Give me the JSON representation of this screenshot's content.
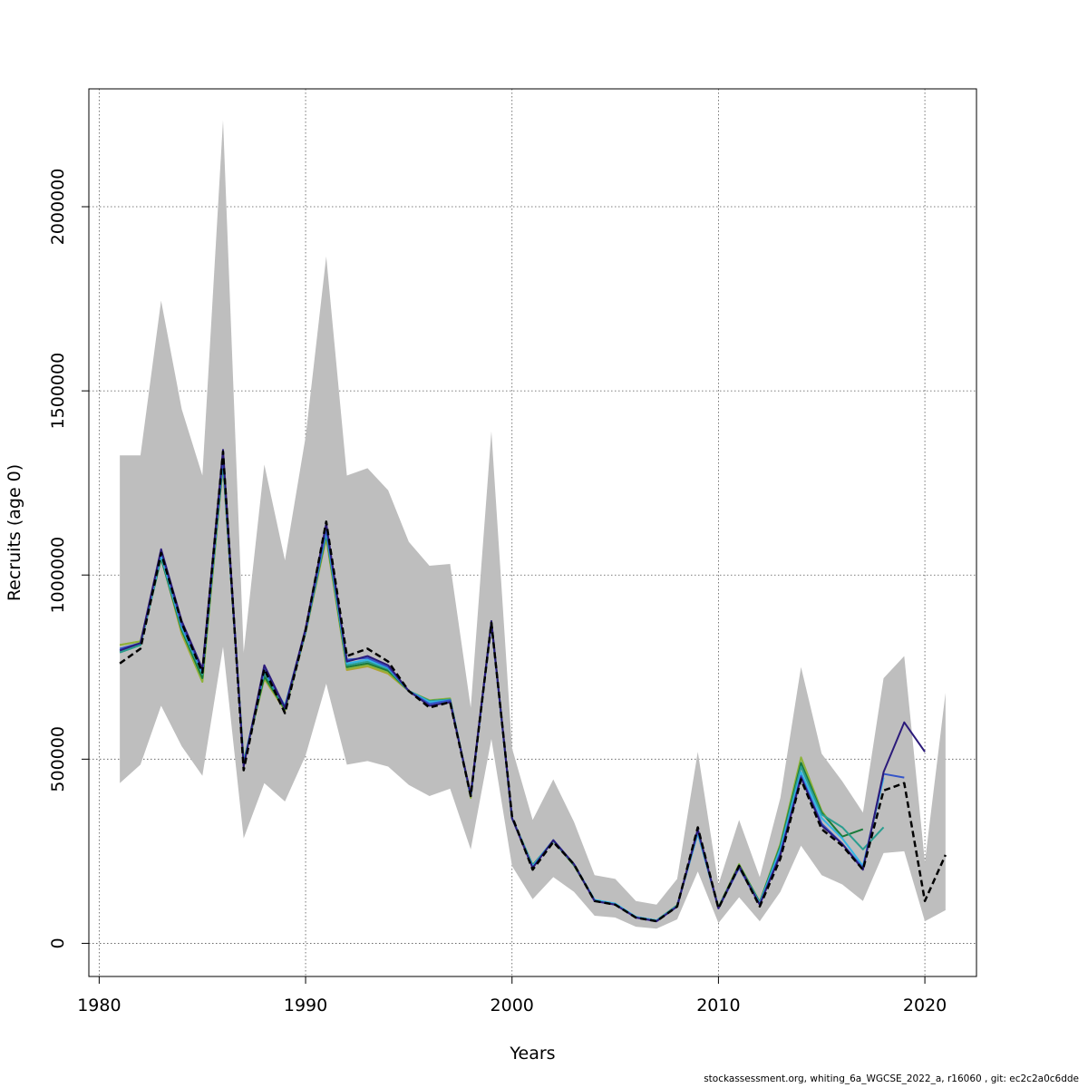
{
  "chart_data": {
    "type": "line",
    "title": "",
    "xlabel": "Years",
    "ylabel": "Recruits (age 0)",
    "xlim": [
      1979.5,
      2022.5
    ],
    "ylim": [
      -90000,
      2320000
    ],
    "xticks": [
      1980,
      1990,
      2000,
      2010,
      2020
    ],
    "yticks": [
      0,
      500000,
      1000000,
      1500000,
      2000000
    ],
    "grid": true,
    "band_color": "#bebebe",
    "band": {
      "x": [
        1981,
        1982,
        1983,
        1984,
        1985,
        1986,
        1987,
        1988,
        1989,
        1990,
        1991,
        1992,
        1993,
        1994,
        1995,
        1996,
        1997,
        1998,
        1999,
        2000,
        2001,
        2002,
        2003,
        2004,
        2005,
        2006,
        2007,
        2008,
        2009,
        2010,
        2011,
        2012,
        2013,
        2014,
        2015,
        2016,
        2017,
        2018,
        2019,
        2020,
        2021
      ],
      "upper": [
        1325000,
        1325000,
        1745000,
        1450000,
        1270000,
        2235000,
        790000,
        1300000,
        1040000,
        1375000,
        1865000,
        1270000,
        1290000,
        1230000,
        1090000,
        1025000,
        1030000,
        640000,
        1390000,
        530000,
        335000,
        445000,
        330000,
        185000,
        175000,
        115000,
        105000,
        175000,
        520000,
        160000,
        335000,
        180000,
        395000,
        750000,
        515000,
        440000,
        355000,
        720000,
        780000,
        220000,
        680000
      ],
      "lower": [
        435000,
        485000,
        645000,
        535000,
        455000,
        805000,
        285000,
        435000,
        385000,
        510000,
        705000,
        485000,
        495000,
        480000,
        430000,
        400000,
        420000,
        255000,
        555000,
        210000,
        120000,
        180000,
        140000,
        75000,
        70000,
        45000,
        40000,
        65000,
        195000,
        55000,
        125000,
        60000,
        140000,
        265000,
        185000,
        160000,
        115000,
        245000,
        250000,
        60000,
        90000
      ]
    },
    "series": [
      {
        "color": "#000000",
        "dash": true,
        "width": 2.5,
        "x": [
          1981,
          1982,
          1983,
          1984,
          1985,
          1986,
          1987,
          1988,
          1989,
          1990,
          1991,
          1992,
          1993,
          1994,
          1995,
          1996,
          1997,
          1998,
          1999,
          2000,
          2001,
          2002,
          2003,
          2004,
          2005,
          2006,
          2007,
          2008,
          2009,
          2010,
          2011,
          2012,
          2013,
          2014,
          2015,
          2016,
          2017,
          2018,
          2019,
          2020,
          2021
        ],
        "y": [
          760000,
          800000,
          1060000,
          870000,
          735000,
          1335000,
          470000,
          745000,
          625000,
          850000,
          1145000,
          780000,
          800000,
          765000,
          685000,
          640000,
          655000,
          400000,
          870000,
          345000,
          200000,
          275000,
          215000,
          115000,
          105000,
          70000,
          60000,
          100000,
          315000,
          95000,
          210000,
          100000,
          230000,
          445000,
          310000,
          265000,
          200000,
          415000,
          435000,
          115000,
          240000
        ]
      },
      {
        "color": "#2b1a7a",
        "dash": false,
        "width": 2,
        "x": [
          1981,
          1982,
          1983,
          1984,
          1985,
          1986,
          1987,
          1988,
          1989,
          1990,
          1991,
          1992,
          1993,
          1994,
          1995,
          1996,
          1997,
          1998,
          1999,
          2000,
          2001,
          2002,
          2003,
          2004,
          2005,
          2006,
          2007,
          2008,
          2009,
          2010,
          2011,
          2012,
          2013,
          2014,
          2015,
          2016,
          2017,
          2018,
          2019,
          2020
        ],
        "y": [
          795000,
          815000,
          1070000,
          875000,
          745000,
          1340000,
          480000,
          755000,
          640000,
          855000,
          1140000,
          765000,
          780000,
          755000,
          685000,
          645000,
          655000,
          405000,
          875000,
          340000,
          205000,
          280000,
          215000,
          115000,
          105000,
          70000,
          60000,
          100000,
          310000,
          95000,
          210000,
          105000,
          240000,
          450000,
          320000,
          270000,
          200000,
          465000,
          600000,
          520000
        ]
      },
      {
        "color": "#3455c9",
        "dash": false,
        "width": 2,
        "x": [
          1981,
          1982,
          1983,
          1984,
          1985,
          1986,
          1987,
          1988,
          1989,
          1990,
          1991,
          1992,
          1993,
          1994,
          1995,
          1996,
          1997,
          1998,
          1999,
          2000,
          2001,
          2002,
          2003,
          2004,
          2005,
          2006,
          2007,
          2008,
          2009,
          2010,
          2011,
          2012,
          2013,
          2014,
          2015,
          2016,
          2017,
          2018,
          2019
        ],
        "y": [
          800000,
          815000,
          1065000,
          865000,
          740000,
          1320000,
          485000,
          745000,
          640000,
          850000,
          1125000,
          770000,
          775000,
          750000,
          685000,
          650000,
          660000,
          400000,
          870000,
          340000,
          205000,
          280000,
          215000,
          115000,
          105000,
          70000,
          60000,
          100000,
          305000,
          95000,
          205000,
          105000,
          245000,
          455000,
          325000,
          270000,
          205000,
          460000,
          450000
        ]
      },
      {
        "color": "#33b5e5",
        "dash": false,
        "width": 2,
        "x": [
          1981,
          1982,
          1983,
          1984,
          1985,
          1986,
          1987,
          1988,
          1989,
          1990,
          1991,
          1992,
          1993,
          1994,
          1995,
          1996,
          1997,
          1998,
          1999,
          2000,
          2001,
          2002,
          2003,
          2004,
          2005,
          2006,
          2007,
          2008,
          2009,
          2010,
          2011,
          2012,
          2013,
          2014,
          2015,
          2016,
          2017,
          2018
        ],
        "y": [
          795000,
          815000,
          1055000,
          860000,
          735000,
          1315000,
          490000,
          740000,
          645000,
          850000,
          1120000,
          760000,
          770000,
          748000,
          685000,
          655000,
          660000,
          400000,
          870000,
          340000,
          210000,
          280000,
          215000,
          118000,
          108000,
          72000,
          62000,
          102000,
          300000,
          97000,
          208000,
          108000,
          255000,
          465000,
          340000,
          285000,
          210000,
          450000
        ]
      },
      {
        "color": "#2a9d8f",
        "dash": false,
        "width": 2,
        "x": [
          1981,
          1982,
          1983,
          1984,
          1985,
          1986,
          1987,
          1988,
          1989,
          1990,
          1991,
          1992,
          1993,
          1994,
          1995,
          1996,
          1997,
          1998,
          1999,
          2000,
          2001,
          2002,
          2003,
          2004,
          2005,
          2006,
          2007,
          2008,
          2009,
          2010,
          2011,
          2012,
          2013,
          2014,
          2015,
          2016,
          2017,
          2018
        ],
        "y": [
          790000,
          810000,
          1050000,
          855000,
          730000,
          1310000,
          490000,
          735000,
          640000,
          845000,
          1115000,
          755000,
          765000,
          745000,
          685000,
          658000,
          662000,
          400000,
          872000,
          340000,
          210000,
          278000,
          215000,
          117000,
          107000,
          71000,
          62000,
          102000,
          300000,
          97000,
          210000,
          110000,
          260000,
          480000,
          350000,
          315000,
          255000,
          315000
        ]
      },
      {
        "color": "#1a7a3a",
        "dash": false,
        "width": 2,
        "x": [
          1981,
          1982,
          1983,
          1984,
          1985,
          1986,
          1987,
          1988,
          1989,
          1990,
          1991,
          1992,
          1993,
          1994,
          1995,
          1996,
          1997,
          1998,
          1999,
          2000,
          2001,
          2002,
          2003,
          2004,
          2005,
          2006,
          2007,
          2008,
          2009,
          2010,
          2011,
          2012,
          2013,
          2014,
          2015,
          2016,
          2017
        ],
        "y": [
          790000,
          810000,
          1045000,
          850000,
          720000,
          1305000,
          490000,
          725000,
          635000,
          845000,
          1110000,
          750000,
          760000,
          740000,
          685000,
          658000,
          662000,
          400000,
          873000,
          340000,
          212000,
          278000,
          212000,
          117000,
          107000,
          71000,
          62000,
          103000,
          300000,
          98000,
          212000,
          112000,
          265000,
          490000,
          355000,
          290000,
          310000
        ]
      },
      {
        "color": "#8db33a",
        "dash": false,
        "width": 2,
        "x": [
          1981,
          1982,
          1983,
          1984,
          1985,
          1986,
          1987,
          1988,
          1989,
          1990,
          1991,
          1992,
          1993,
          1994,
          1995,
          1996,
          1997,
          1998,
          1999,
          2000,
          2001,
          2002,
          2003,
          2004,
          2005,
          2006,
          2007,
          2008,
          2009,
          2010,
          2011,
          2012,
          2013,
          2014,
          2015,
          2016
        ],
        "y": [
          810000,
          820000,
          1050000,
          845000,
          710000,
          1300000,
          495000,
          720000,
          635000,
          845000,
          1105000,
          745000,
          755000,
          735000,
          685000,
          660000,
          665000,
          395000,
          875000,
          340000,
          212000,
          278000,
          212000,
          117000,
          107000,
          71000,
          62000,
          103000,
          300000,
          98000,
          215000,
          112000,
          270000,
          505000,
          360000,
          285000
        ]
      },
      {
        "color": "#b5a032",
        "dash": false,
        "width": 2,
        "x": [
          1981,
          1982,
          1983,
          1984,
          1985,
          1986,
          1987,
          1988,
          1989,
          1990,
          1991,
          1992,
          1993,
          1994,
          1995
        ],
        "y": [
          810000,
          820000,
          1050000,
          840000,
          710000,
          1300000,
          495000,
          718000,
          632000,
          843000,
          1100000,
          742000,
          752000,
          732000,
          685000
        ]
      }
    ]
  },
  "footer": {
    "text": "stockassessment.org, whiting_6a_WGCSE_2022_a, r16060 , git: ec2c2a0c6dde"
  }
}
